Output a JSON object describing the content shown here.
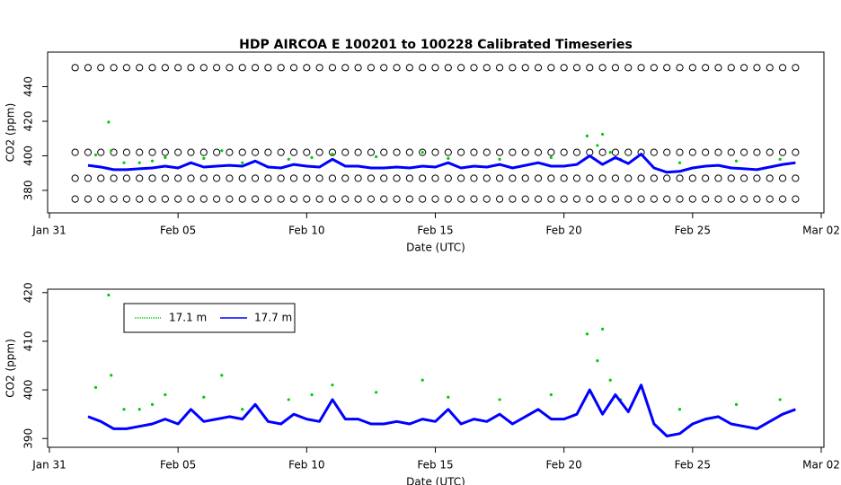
{
  "chart_data": [
    {
      "type": "scatter",
      "title": "HDP   AIRCOA  E   100201  to  100228   Calibrated Timeseries",
      "xlabel": "Date (UTC)",
      "ylabel": "CO2 (ppm)",
      "xlim": [
        0,
        30
      ],
      "xticks": [
        {
          "value": 0,
          "label": "Jan 31"
        },
        {
          "value": 5,
          "label": "Feb 05"
        },
        {
          "value": 10,
          "label": "Feb 10"
        },
        {
          "value": 15,
          "label": "Feb 15"
        },
        {
          "value": 20,
          "label": "Feb 20"
        },
        {
          "value": 25,
          "label": "Feb 25"
        },
        {
          "value": 30,
          "label": "Mar 02"
        }
      ],
      "ylim": [
        367,
        460
      ],
      "yticks": [
        380,
        400,
        420,
        440
      ],
      "series": [
        {
          "color": "#000000",
          "mark": "circle",
          "x": [
            1,
            1.5,
            2,
            2.5,
            3,
            3.5,
            4,
            4.5,
            5,
            5.5,
            6,
            6.5,
            7,
            7.5,
            8,
            8.5,
            9,
            9.5,
            10,
            10.5,
            11,
            11.5,
            12,
            12.5,
            13,
            13.5,
            14,
            14.5,
            15,
            15.5,
            16,
            16.5,
            17,
            17.5,
            18,
            18.5,
            19,
            19.5,
            20,
            20.5,
            21,
            21.5,
            22,
            22.5,
            23,
            23.5,
            24,
            24.5,
            25,
            25.5,
            26,
            26.5,
            27,
            27.5,
            28,
            28.5,
            29
          ],
          "values": [
            451,
            451,
            451,
            451,
            451,
            451,
            451,
            451,
            451,
            451,
            451,
            451,
            451,
            451,
            451,
            451,
            451,
            451,
            451,
            451,
            451,
            451,
            451,
            451,
            451,
            451,
            451,
            451,
            451,
            451,
            451,
            451,
            451,
            451,
            451,
            451,
            451,
            451,
            451,
            451,
            451,
            451,
            451,
            451,
            451,
            451,
            451,
            451,
            451,
            451,
            451,
            451,
            451,
            451,
            451,
            451,
            451
          ]
        },
        {
          "color": "#000000",
          "mark": "circle",
          "x": [
            1,
            1.5,
            2,
            2.5,
            3,
            3.5,
            4,
            4.5,
            5,
            5.5,
            6,
            6.5,
            7,
            7.5,
            8,
            8.5,
            9,
            9.5,
            10,
            10.5,
            11,
            11.5,
            12,
            12.5,
            13,
            13.5,
            14,
            14.5,
            15,
            15.5,
            16,
            16.5,
            17,
            17.5,
            18,
            18.5,
            19,
            19.5,
            20,
            20.5,
            21,
            21.5,
            22,
            22.5,
            23,
            23.5,
            24,
            24.5,
            25,
            25.5,
            26,
            26.5,
            27,
            27.5,
            28,
            28.5,
            29
          ],
          "values": [
            402,
            402,
            402,
            402,
            402,
            402,
            402,
            402,
            402,
            402,
            402,
            402,
            402,
            402,
            402,
            402,
            402,
            402,
            402,
            402,
            402,
            402,
            402,
            402,
            402,
            402,
            402,
            402,
            402,
            402,
            402,
            402,
            402,
            402,
            402,
            402,
            402,
            402,
            402,
            402,
            402,
            402,
            402,
            402,
            402,
            402,
            402,
            402,
            402,
            402,
            402,
            402,
            402,
            402,
            402,
            402,
            402
          ]
        },
        {
          "color": "#000000",
          "mark": "circle",
          "x": [
            1,
            1.5,
            2,
            2.5,
            3,
            3.5,
            4,
            4.5,
            5,
            5.5,
            6,
            6.5,
            7,
            7.5,
            8,
            8.5,
            9,
            9.5,
            10,
            10.5,
            11,
            11.5,
            12,
            12.5,
            13,
            13.5,
            14,
            14.5,
            15,
            15.5,
            16,
            16.5,
            17,
            17.5,
            18,
            18.5,
            19,
            19.5,
            20,
            20.5,
            21,
            21.5,
            22,
            22.5,
            23,
            23.5,
            24,
            24.5,
            25,
            25.5,
            26,
            26.5,
            27,
            27.5,
            28,
            28.5,
            29
          ],
          "values": [
            387,
            387,
            387,
            387,
            387,
            387,
            387,
            387,
            387,
            387,
            387,
            387,
            387,
            387,
            387,
            387,
            387,
            387,
            387,
            387,
            387,
            387,
            387,
            387,
            387,
            387,
            387,
            387,
            387,
            387,
            387,
            387,
            387,
            387,
            387,
            387,
            387,
            387,
            387,
            387,
            387,
            387,
            387,
            387,
            387,
            387,
            387,
            387,
            387,
            387,
            387,
            387,
            387,
            387,
            387,
            387,
            387
          ]
        },
        {
          "color": "#000000",
          "mark": "circle",
          "x": [
            1,
            1.5,
            2,
            2.5,
            3,
            3.5,
            4,
            4.5,
            5,
            5.5,
            6,
            6.5,
            7,
            7.5,
            8,
            8.5,
            9,
            9.5,
            10,
            10.5,
            11,
            11.5,
            12,
            12.5,
            13,
            13.5,
            14,
            14.5,
            15,
            15.5,
            16,
            16.5,
            17,
            17.5,
            18,
            18.5,
            19,
            19.5,
            20,
            20.5,
            21,
            21.5,
            22,
            22.5,
            23,
            23.5,
            24,
            24.5,
            25,
            25.5,
            26,
            26.5,
            27,
            27.5,
            28,
            28.5,
            29
          ],
          "values": [
            375,
            375,
            375,
            375,
            375,
            375,
            375,
            375,
            375,
            375,
            375,
            375,
            375,
            375,
            375,
            375,
            375,
            375,
            375,
            375,
            375,
            375,
            375,
            375,
            375,
            375,
            375,
            375,
            375,
            375,
            375,
            375,
            375,
            375,
            375,
            375,
            375,
            375,
            375,
            375,
            375,
            375,
            375,
            375,
            375,
            375,
            375,
            375,
            375,
            375,
            375,
            375,
            375,
            375,
            375,
            375,
            375
          ]
        },
        {
          "color": "#00cc00",
          "mark": "dot",
          "x": [
            1.8,
            2.3,
            2.4,
            2.9,
            3.5,
            4,
            4.5,
            6,
            6.7,
            7.5,
            9.3,
            10.2,
            11,
            12.7,
            14.5,
            15.5,
            17.5,
            19.5,
            20.9,
            21.3,
            21.5,
            21.8,
            22.2,
            24.5,
            26.7,
            28.4
          ],
          "values": [
            400.5,
            419.5,
            403,
            396,
            396,
            397,
            399,
            398.5,
            403,
            396,
            398,
            399,
            401,
            399.5,
            402,
            398.5,
            398,
            399,
            411.5,
            406,
            412.5,
            402,
            398,
            396,
            397,
            398
          ]
        },
        {
          "color": "#0000ff",
          "mark": "line",
          "x": [
            1.5,
            2,
            2.5,
            3,
            3.5,
            4,
            4.5,
            5,
            5.5,
            6,
            6.5,
            7,
            7.5,
            8,
            8.5,
            9,
            9.5,
            10,
            10.5,
            11,
            11.5,
            12,
            12.5,
            13,
            13.5,
            14,
            14.5,
            15,
            15.5,
            16,
            16.5,
            17,
            17.5,
            18,
            18.5,
            19,
            19.5,
            20,
            20.5,
            21,
            21.5,
            22,
            22.5,
            23,
            23.5,
            24,
            24.5,
            25,
            25.5,
            26,
            26.5,
            27,
            27.5,
            28,
            28.5,
            29
          ],
          "values": [
            394.5,
            393.5,
            392,
            392,
            392.5,
            393,
            394,
            393,
            396,
            393.5,
            394,
            394.5,
            394,
            397,
            393.5,
            393,
            395,
            394,
            393.5,
            398,
            394,
            394,
            393,
            393,
            393.5,
            393,
            394,
            393.5,
            396,
            393,
            394,
            393.5,
            395,
            393,
            394.5,
            396,
            394,
            394,
            395,
            400,
            395,
            399,
            395.5,
            401,
            393,
            390.5,
            391,
            393,
            394,
            394.5,
            393,
            392.5,
            392,
            393.5,
            395,
            396
          ]
        }
      ]
    },
    {
      "type": "scatter",
      "xlabel": "Date (UTC)",
      "ylabel": "CO2 (ppm)",
      "xlim": [
        0,
        30
      ],
      "xticks": [
        {
          "value": 0,
          "label": "Jan 31"
        },
        {
          "value": 5,
          "label": "Feb 05"
        },
        {
          "value": 10,
          "label": "Feb 10"
        },
        {
          "value": 15,
          "label": "Feb 15"
        },
        {
          "value": 20,
          "label": "Feb 20"
        },
        {
          "value": 25,
          "label": "Feb 25"
        },
        {
          "value": 30,
          "label": "Mar 02"
        }
      ],
      "ylim": [
        388.2,
        420.7
      ],
      "yticks": [
        390,
        400,
        410,
        420
      ],
      "legend": "top-left",
      "series": [
        {
          "name": "17.1 m",
          "color": "#00cc00",
          "mark": "dot",
          "x": [
            1.8,
            2.3,
            2.4,
            2.9,
            3.5,
            4,
            4.5,
            6,
            6.7,
            7.5,
            9.3,
            10.2,
            11,
            12.7,
            14.5,
            15.5,
            17.5,
            19.5,
            20.9,
            21.3,
            21.5,
            21.8,
            22.2,
            24.5,
            26.7,
            28.4
          ],
          "values": [
            400.5,
            419.5,
            403,
            396,
            396,
            397,
            399,
            398.5,
            403,
            396,
            398,
            399,
            401,
            399.5,
            402,
            398.5,
            398,
            399,
            411.5,
            406,
            412.5,
            402,
            398,
            396,
            397,
            398
          ]
        },
        {
          "name": "17.7 m",
          "color": "#0000ff",
          "mark": "line",
          "x": [
            1.5,
            2,
            2.5,
            3,
            3.5,
            4,
            4.5,
            5,
            5.5,
            6,
            6.5,
            7,
            7.5,
            8,
            8.5,
            9,
            9.5,
            10,
            10.5,
            11,
            11.5,
            12,
            12.5,
            13,
            13.5,
            14,
            14.5,
            15,
            15.5,
            16,
            16.5,
            17,
            17.5,
            18,
            18.5,
            19,
            19.5,
            20,
            20.5,
            21,
            21.5,
            22,
            22.5,
            23,
            23.5,
            24,
            24.5,
            25,
            25.5,
            26,
            26.5,
            27,
            27.5,
            28,
            28.5,
            29
          ],
          "values": [
            394.5,
            393.5,
            392,
            392,
            392.5,
            393,
            394,
            393,
            396,
            393.5,
            394,
            394.5,
            394,
            397,
            393.5,
            393,
            395,
            394,
            393.5,
            398,
            394,
            394,
            393,
            393,
            393.5,
            393,
            394,
            393.5,
            396,
            393,
            394,
            393.5,
            395,
            393,
            394.5,
            396,
            394,
            394,
            395,
            400,
            395,
            399,
            395.5,
            401,
            393,
            390.5,
            391,
            393,
            394,
            394.5,
            393,
            392.5,
            392,
            393.5,
            395,
            396
          ]
        }
      ]
    }
  ]
}
